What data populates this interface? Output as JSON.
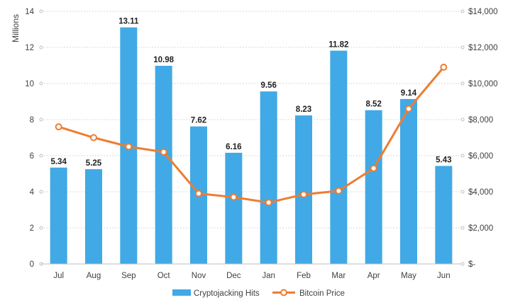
{
  "chart_data": {
    "type": "bar",
    "categories": [
      "Jul",
      "Aug",
      "Sep",
      "Oct",
      "Nov",
      "Dec",
      "Jan",
      "Feb",
      "Mar",
      "Apr",
      "May",
      "Jun"
    ],
    "series": [
      {
        "name": "Cryptojacking Hits",
        "type": "bar",
        "axis": "left",
        "color": "#41A9E6",
        "values": [
          5.34,
          5.25,
          13.11,
          10.98,
          7.62,
          6.16,
          9.56,
          8.23,
          11.82,
          8.52,
          9.14,
          5.43
        ],
        "labels": [
          "5.34",
          "5.25",
          "13.11",
          "10.98",
          "7.62",
          "6.16",
          "9.56",
          "8.23",
          "11.82",
          "8.52",
          "9.14",
          "5.43"
        ]
      },
      {
        "name": "Bitcoin Price",
        "type": "line",
        "axis": "right",
        "color": "#ED7D31",
        "values": [
          7600,
          7000,
          6500,
          6200,
          3900,
          3700,
          3400,
          3850,
          4050,
          5300,
          8600,
          10900
        ]
      }
    ],
    "y_left": {
      "label": "Millions",
      "range": [
        0,
        14
      ],
      "ticks": [
        0,
        2,
        4,
        6,
        8,
        10,
        12,
        14
      ],
      "tick_labels": [
        "0",
        "2",
        "4",
        "6",
        "8",
        "10",
        "12",
        "14"
      ]
    },
    "y_right": {
      "range": [
        0,
        14000
      ],
      "ticks": [
        0,
        2000,
        4000,
        6000,
        8000,
        10000,
        12000,
        14000
      ],
      "tick_labels": [
        "$-",
        "$2,000",
        "$4,000",
        "$6,000",
        "$8,000",
        "$10,000",
        "$12,000",
        "$14,000"
      ]
    },
    "grid": true,
    "legend_position": "bottom"
  }
}
